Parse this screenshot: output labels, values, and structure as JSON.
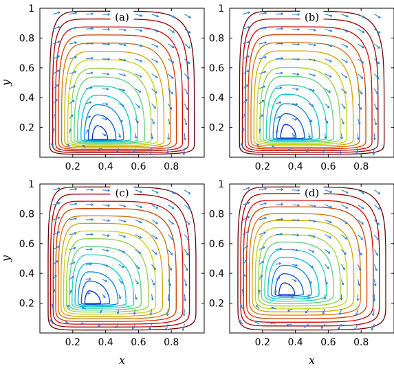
{
  "figure": {
    "panel_count": 4
  },
  "chart_data": [
    {
      "type": "contour",
      "panel_label": "(a)",
      "xlabel": "",
      "ylabel": "y",
      "xlim": [
        0,
        1
      ],
      "ylim": [
        0,
        1
      ],
      "xticks": [
        "0.2",
        "0.4",
        "0.6",
        "0.8"
      ],
      "yticks": [
        "0.2",
        "0.4",
        "0.6",
        "0.8",
        "1"
      ],
      "vortex_center": [
        0.35,
        0.12
      ],
      "vortex_extent": {
        "x": [
          0.06,
          0.94
        ],
        "y": [
          0.02,
          0.98
        ]
      },
      "contour_levels": 14,
      "colormap": "jet",
      "vector_field": "quiver",
      "vector_color": "#2a7fd6"
    },
    {
      "type": "contour",
      "panel_label": "(b)",
      "xlabel": "",
      "ylabel": "",
      "xlim": [
        0,
        1
      ],
      "ylim": [
        0,
        1
      ],
      "xticks": [
        "0.2",
        "0.4",
        "0.6",
        "0.8"
      ],
      "yticks": [
        "0.2",
        "0.4",
        "0.6",
        "0.8",
        "1"
      ],
      "vortex_center": [
        0.34,
        0.13
      ],
      "vortex_extent": {
        "x": [
          0.06,
          0.94
        ],
        "y": [
          0.02,
          0.98
        ]
      },
      "contour_levels": 14,
      "colormap": "jet",
      "vector_field": "quiver",
      "vector_color": "#2a7fd6"
    },
    {
      "type": "contour",
      "panel_label": "(c)",
      "xlabel": "x",
      "ylabel": "y",
      "xlim": [
        0,
        1
      ],
      "ylim": [
        0,
        1
      ],
      "xticks": [
        "0.2",
        "0.4",
        "0.6",
        "0.8"
      ],
      "yticks": [
        "0.2",
        "0.4",
        "0.6",
        "0.8",
        "1"
      ],
      "vortex_center": [
        0.3,
        0.2
      ],
      "vortex_extent": {
        "x": [
          0.05,
          0.95
        ],
        "y": [
          0.02,
          0.98
        ]
      },
      "contour_levels": 14,
      "colormap": "jet",
      "vector_field": "quiver",
      "vector_color": "#2a7fd6"
    },
    {
      "type": "contour",
      "panel_label": "(d)",
      "xlabel": "x",
      "ylabel": "",
      "xlim": [
        0,
        1
      ],
      "ylim": [
        0,
        1
      ],
      "xticks": [
        "0.2",
        "0.4",
        "0.6",
        "0.8"
      ],
      "yticks": [
        "0.2",
        "0.4",
        "0.6",
        "0.8",
        "1"
      ],
      "vortex_center": [
        0.33,
        0.26
      ],
      "vortex_extent": {
        "x": [
          0.05,
          0.95
        ],
        "y": [
          0.02,
          0.98
        ]
      },
      "contour_levels": 14,
      "colormap": "jet",
      "vector_field": "quiver",
      "vector_color": "#2a7fd6"
    }
  ]
}
